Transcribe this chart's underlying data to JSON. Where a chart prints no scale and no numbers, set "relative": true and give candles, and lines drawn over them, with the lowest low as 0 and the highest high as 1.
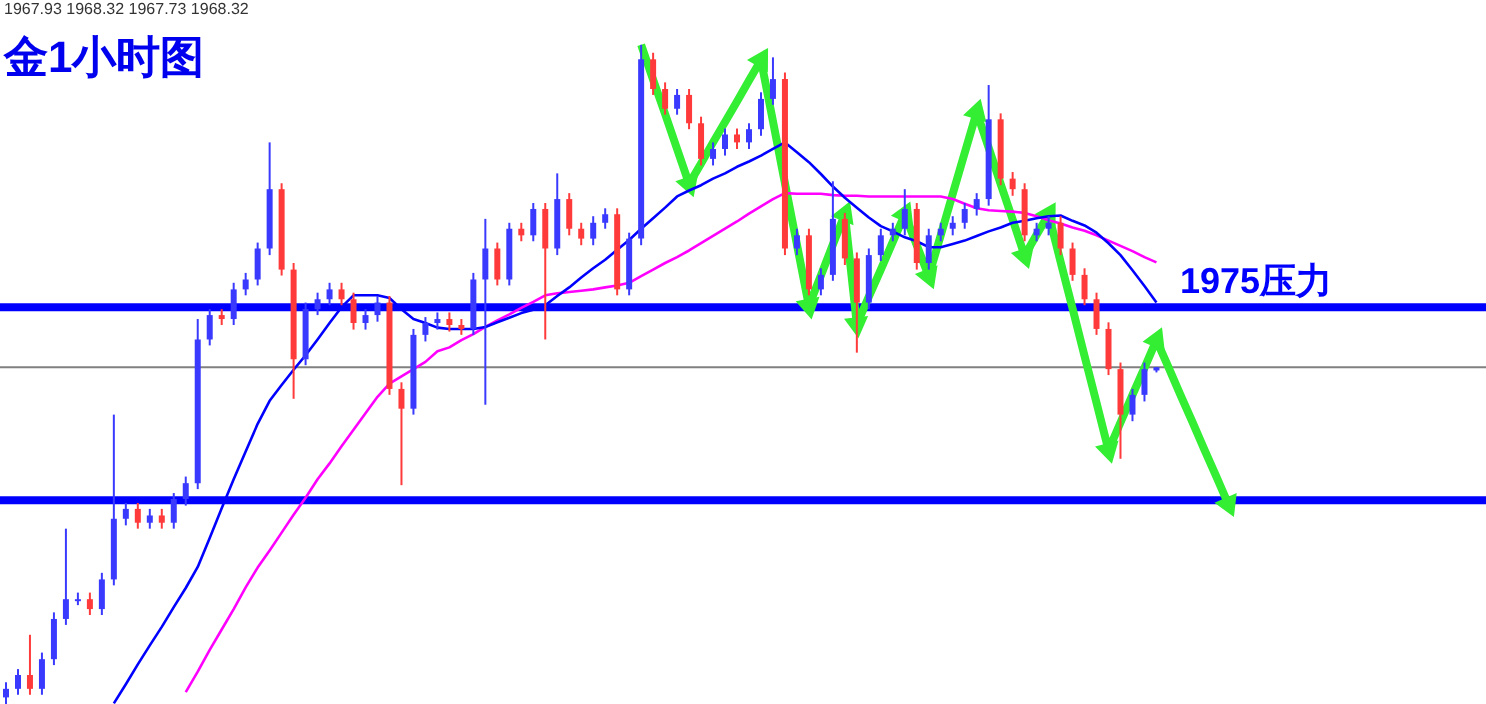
{
  "chart_data": {
    "type": "candlestick",
    "title": "金1小时图",
    "subtitle": "1967.93 1968.32 1967.73 1968.32",
    "relative": true,
    "categories": [
      null,
      null,
      null,
      null,
      null,
      null,
      null,
      null,
      null,
      null,
      null,
      null,
      null,
      null,
      null,
      null,
      null,
      null,
      null,
      null,
      null,
      null,
      null,
      null,
      null,
      null,
      null,
      null,
      null,
      null,
      null,
      null,
      null,
      null,
      null,
      null,
      null,
      null,
      null,
      null,
      null,
      null,
      null,
      null,
      null,
      null,
      null,
      null,
      null,
      null,
      null,
      null,
      null,
      null,
      null,
      null,
      null,
      null,
      null,
      null,
      null,
      null,
      null,
      null,
      null,
      null,
      null,
      null,
      null,
      null,
      null,
      null,
      null,
      null,
      null,
      null,
      null,
      null,
      null,
      null,
      null,
      null,
      null,
      null,
      null,
      null,
      null,
      null,
      null,
      null,
      null,
      null,
      null,
      null,
      null,
      null,
      null,
      null,
      null,
      null,
      null,
      null,
      null,
      null,
      null,
      null,
      null,
      null,
      null,
      null,
      null,
      null,
      null,
      null,
      null,
      null,
      null,
      null,
      null,
      null,
      null,
      null,
      null,
      null
    ],
    "ohlc": [
      [
        0.01,
        0.033,
        0,
        0.023
      ],
      [
        0.023,
        0.053,
        0.014,
        0.044
      ],
      [
        0.044,
        0.105,
        0.014,
        0.023
      ],
      [
        0.023,
        0.078,
        0.014,
        0.068
      ],
      [
        0.068,
        0.139,
        0.059,
        0.129
      ],
      [
        0.129,
        0.266,
        0.12,
        0.159
      ],
      [
        0.159,
        0.169,
        0.15,
        0.159
      ],
      [
        0.159,
        0.169,
        0.135,
        0.144
      ],
      [
        0.144,
        0.199,
        0.135,
        0.189
      ],
      [
        0.189,
        0.439,
        0.18,
        0.281
      ],
      [
        0.281,
        0.305,
        0.271,
        0.296
      ],
      [
        0.296,
        0.305,
        0.266,
        0.275
      ],
      [
        0.275,
        0.296,
        0.266,
        0.286
      ],
      [
        0.286,
        0.296,
        0.266,
        0.275
      ],
      [
        0.275,
        0.32,
        0.266,
        0.311
      ],
      [
        0.311,
        0.345,
        0.301,
        0.335
      ],
      [
        0.335,
        0.584,
        0.326,
        0.553
      ],
      [
        0.553,
        0.599,
        0.544,
        0.59
      ],
      [
        0.59,
        0.599,
        0.575,
        0.584
      ],
      [
        0.584,
        0.639,
        0.575,
        0.629
      ],
      [
        0.629,
        0.654,
        0.62,
        0.644
      ],
      [
        0.644,
        0.7,
        0.635,
        0.691
      ],
      [
        0.691,
        0.852,
        0.681,
        0.781
      ],
      [
        0.781,
        0.79,
        0.65,
        0.659
      ],
      [
        0.659,
        0.669,
        0.463,
        0.523
      ],
      [
        0.523,
        0.609,
        0.514,
        0.599
      ],
      [
        0.599,
        0.624,
        0.59,
        0.614
      ],
      [
        0.614,
        0.639,
        0.605,
        0.629
      ],
      [
        0.629,
        0.639,
        0.605,
        0.614
      ],
      [
        0.614,
        0.624,
        0.568,
        0.578
      ],
      [
        0.578,
        0.599,
        0.568,
        0.59
      ],
      [
        0.59,
        0.619,
        0.58,
        0.609
      ],
      [
        0.609,
        0.619,
        0.469,
        0.478
      ],
      [
        0.478,
        0.488,
        0.332,
        0.448
      ],
      [
        0.448,
        0.569,
        0.439,
        0.56
      ],
      [
        0.56,
        0.587,
        0.55,
        0.578
      ],
      [
        0.578,
        0.594,
        0.568,
        0.584
      ],
      [
        0.584,
        0.594,
        0.565,
        0.575
      ],
      [
        0.575,
        0.584,
        0.56,
        0.569
      ],
      [
        0.569,
        0.654,
        0.56,
        0.644
      ],
      [
        0.644,
        0.736,
        0.454,
        0.691
      ],
      [
        0.691,
        0.7,
        0.635,
        0.644
      ],
      [
        0.644,
        0.73,
        0.635,
        0.721
      ],
      [
        0.721,
        0.73,
        0.702,
        0.711
      ],
      [
        0.711,
        0.76,
        0.702,
        0.751
      ],
      [
        0.751,
        0.76,
        0.553,
        0.691
      ],
      [
        0.691,
        0.805,
        0.681,
        0.766
      ],
      [
        0.766,
        0.775,
        0.711,
        0.721
      ],
      [
        0.721,
        0.73,
        0.696,
        0.706
      ],
      [
        0.706,
        0.74,
        0.696,
        0.73
      ],
      [
        0.73,
        0.752,
        0.721,
        0.743
      ],
      [
        0.743,
        0.752,
        0.62,
        0.629
      ],
      [
        0.629,
        0.715,
        0.62,
        0.706
      ],
      [
        0.706,
        1,
        0.696,
        0.978
      ],
      [
        0.978,
        0.988,
        0.924,
        0.933
      ],
      [
        0.933,
        0.943,
        0.894,
        0.903
      ],
      [
        0.903,
        0.933,
        0.894,
        0.924
      ],
      [
        0.924,
        0.933,
        0.872,
        0.881
      ],
      [
        0.881,
        0.891,
        0.817,
        0.827
      ],
      [
        0.827,
        0.852,
        0.817,
        0.842
      ],
      [
        0.842,
        0.873,
        0.832,
        0.864
      ],
      [
        0.864,
        0.873,
        0.842,
        0.852
      ],
      [
        0.852,
        0.881,
        0.842,
        0.872
      ],
      [
        0.872,
        0.928,
        0.862,
        0.918
      ],
      [
        0.918,
        0.981,
        0.909,
        0.948
      ],
      [
        0.948,
        0.958,
        0.681,
        0.691
      ],
      [
        0.691,
        0.721,
        0.681,
        0.711
      ],
      [
        0.711,
        0.721,
        0.62,
        0.629
      ],
      [
        0.629,
        0.661,
        0.62,
        0.651
      ],
      [
        0.651,
        0.793,
        0.642,
        0.736
      ],
      [
        0.736,
        0.745,
        0.666,
        0.676
      ],
      [
        0.676,
        0.685,
        0.533,
        0.609
      ],
      [
        0.609,
        0.691,
        0.599,
        0.681
      ],
      [
        0.681,
        0.721,
        0.672,
        0.711
      ],
      [
        0.711,
        0.73,
        0.702,
        0.721
      ],
      [
        0.721,
        0.781,
        0.711,
        0.751
      ],
      [
        0.751,
        0.76,
        0.659,
        0.669
      ],
      [
        0.669,
        0.721,
        0.659,
        0.711
      ],
      [
        0.711,
        0.73,
        0.702,
        0.721
      ],
      [
        0.721,
        0.74,
        0.711,
        0.73
      ],
      [
        0.73,
        0.76,
        0.721,
        0.751
      ],
      [
        0.751,
        0.775,
        0.741,
        0.766
      ],
      [
        0.766,
        0.939,
        0.756,
        0.887
      ],
      [
        0.887,
        0.896,
        0.787,
        0.797
      ],
      [
        0.797,
        0.807,
        0.771,
        0.781
      ],
      [
        0.781,
        0.79,
        0.702,
        0.711
      ],
      [
        0.711,
        0.73,
        0.702,
        0.721
      ],
      [
        0.721,
        0.74,
        0.711,
        0.73
      ],
      [
        0.73,
        0.74,
        0.681,
        0.691
      ],
      [
        0.691,
        0.7,
        0.642,
        0.651
      ],
      [
        0.651,
        0.661,
        0.605,
        0.614
      ],
      [
        0.614,
        0.624,
        0.56,
        0.569
      ],
      [
        0.569,
        0.579,
        0.499,
        0.508
      ],
      [
        0.508,
        0.518,
        0.372,
        0.439
      ],
      [
        0.439,
        0.478,
        0.429,
        0.469
      ],
      [
        0.469,
        0.518,
        0.459,
        0.508
      ],
      [
        0.506,
        0.511,
        0.503,
        0.511
      ],
      null,
      null,
      null,
      null,
      null,
      null,
      null,
      null,
      null,
      null,
      null,
      null,
      null,
      null,
      null,
      null,
      null,
      null,
      null,
      null,
      null,
      null,
      null,
      null,
      null,
      null,
      null
    ],
    "series": [
      {
        "type": "line",
        "color": "#0000ff",
        "values": [
          null,
          null,
          null,
          null,
          null,
          null,
          null,
          null,
          null,
          0.001,
          0.03,
          0.06,
          0.089,
          0.117,
          0.147,
          0.176,
          0.208,
          0.252,
          0.297,
          0.341,
          0.383,
          0.425,
          0.46,
          0.484,
          0.507,
          0.529,
          0.553,
          0.578,
          0.602,
          0.62,
          0.62,
          0.62,
          0.616,
          0.599,
          0.584,
          0.578,
          0.571,
          0.569,
          0.569,
          0.569,
          0.572,
          0.579,
          0.586,
          0.593,
          0.598,
          0.605,
          0.619,
          0.632,
          0.647,
          0.661,
          0.674,
          0.689,
          0.704,
          0.721,
          0.737,
          0.753,
          0.77,
          0.779,
          0.787,
          0.797,
          0.805,
          0.815,
          0.823,
          0.832,
          0.842,
          0.852,
          0.837,
          0.822,
          0.804,
          0.785,
          0.768,
          0.753,
          0.738,
          0.725,
          0.717,
          0.708,
          0.702,
          0.693,
          0.693,
          0.698,
          0.703,
          0.71,
          0.717,
          0.723,
          0.73,
          0.733,
          0.737,
          0.74,
          0.741,
          0.733,
          0.726,
          0.715,
          0.699,
          0.681,
          0.658,
          0.634,
          0.609,
          null,
          null,
          null,
          null,
          null,
          null,
          null,
          null,
          null,
          null,
          null,
          null,
          null,
          null,
          null,
          null,
          null,
          null,
          null,
          null,
          null,
          null,
          null,
          null,
          null,
          null,
          null
        ]
      },
      {
        "type": "line",
        "color": "#ff00ff",
        "values": [
          null,
          null,
          null,
          null,
          null,
          null,
          null,
          null,
          null,
          null,
          null,
          null,
          null,
          null,
          null,
          0.018,
          0.049,
          0.082,
          0.113,
          0.144,
          0.177,
          0.207,
          0.233,
          0.26,
          0.287,
          0.313,
          0.341,
          0.365,
          0.391,
          0.416,
          0.441,
          0.466,
          0.486,
          0.497,
          0.508,
          0.519,
          0.535,
          0.541,
          0.552,
          0.561,
          0.572,
          0.582,
          0.591,
          0.601,
          0.61,
          0.62,
          0.623,
          0.625,
          0.627,
          0.629,
          0.632,
          0.635,
          0.639,
          0.649,
          0.659,
          0.669,
          0.678,
          0.688,
          0.699,
          0.71,
          0.721,
          0.732,
          0.744,
          0.755,
          0.766,
          0.775,
          0.774,
          0.774,
          0.774,
          0.772,
          0.771,
          0.771,
          0.77,
          0.77,
          0.77,
          0.77,
          0.77,
          0.77,
          0.77,
          0.766,
          0.759,
          0.752,
          0.749,
          0.748,
          0.747,
          0.745,
          0.74,
          0.734,
          0.729,
          0.723,
          0.718,
          0.711,
          0.703,
          0.695,
          0.687,
          0.678,
          0.67,
          null,
          null,
          null,
          null,
          null,
          null,
          null,
          null,
          null,
          null,
          null,
          null,
          null,
          null,
          null,
          null,
          null,
          null,
          null,
          null,
          null,
          null,
          null,
          null,
          null,
          null,
          null
        ]
      },
      {
        "type": "line",
        "color": "#33ee33",
        "values": [
          null,
          null,
          null,
          null,
          null,
          null,
          null,
          null,
          null,
          null,
          null,
          null,
          null,
          null,
          null,
          null,
          null,
          null,
          null,
          null,
          null,
          null,
          null,
          null,
          null,
          null,
          null,
          null,
          null,
          null,
          null,
          null,
          null,
          null,
          null,
          null,
          null,
          null,
          null,
          null,
          null,
          null,
          null,
          null,
          null,
          null,
          null,
          null,
          null,
          null,
          null,
          null,
          null,
          1.0,
          0.947,
          0.895,
          0.842,
          0.789,
          0.82,
          0.852,
          0.883,
          0.914,
          0.946,
          0.977,
          0.884,
          0.79,
          0.697,
          0.604,
          0.65,
          0.697,
          0.743,
          0.576,
          0.618,
          0.659,
          0.701,
          0.743,
          0.696,
          0.649,
          0.711,
          0.774,
          0.836,
          0.898,
          0.844,
          0.789,
          0.735,
          0.68,
          0.712,
          0.743,
          0.671,
          0.6,
          0.528,
          0.457,
          0.385,
          0.427,
          0.469,
          0.51,
          0.552,
          0.511,
          0.469,
          0.428,
          0.386,
          0.345,
          0.303,
          null,
          null,
          null,
          null,
          null,
          null,
          null,
          null,
          null,
          null,
          null,
          null,
          null,
          null,
          null,
          null,
          null,
          null,
          null,
          null,
          null
        ]
      }
    ],
    "ref_lines": [
      {
        "axis": "y",
        "value": 0.602,
        "label": "1975压力",
        "color": "#0000ff"
      },
      {
        "axis": "y",
        "value": 0.309,
        "color": "#0000ff"
      },
      {
        "axis": "y",
        "value": 0.511,
        "color": "#808080"
      }
    ],
    "tick_labels": false,
    "grid": false,
    "legend": false,
    "marker": "none",
    "line_style": "solid"
  }
}
